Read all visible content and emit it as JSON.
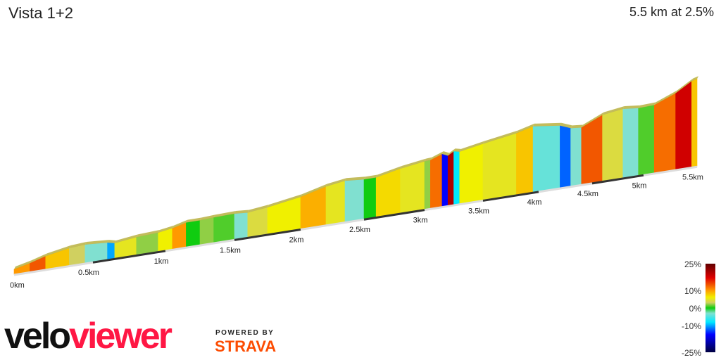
{
  "header": {
    "title": "Vista 1+2",
    "summary": "5.5 km at 2.5%"
  },
  "branding": {
    "velo": "velo",
    "viewer": "viewer",
    "powered_by": "POWERED BY",
    "strava": "STRAVA"
  },
  "chart_data": {
    "type": "area",
    "title": "Vista 1+2",
    "subtitle": "5.5 km at 2.5%",
    "xlabel": "",
    "ylabel": "",
    "x_unit": "km",
    "xlim": [
      0,
      5.5
    ],
    "x_ticks": [
      "0km",
      "0.5km",
      "1km",
      "1.5km",
      "2km",
      "2.5km",
      "3km",
      "3.5km",
      "4km",
      "4.5km",
      "5km",
      "5.5km"
    ],
    "legend": {
      "placement": "bottom-right",
      "labels": [
        "25%",
        "10%",
        "0%",
        "-10%",
        "-25%"
      ],
      "range": [
        -25,
        25
      ]
    },
    "color_stops": [
      {
        "grade": 25,
        "color": "#600000"
      },
      {
        "grade": 17,
        "color": "#e00000"
      },
      {
        "grade": 10,
        "color": "#ff9900"
      },
      {
        "grade": 6,
        "color": "#f0f000"
      },
      {
        "grade": 3,
        "color": "#d0d060"
      },
      {
        "grade": 0,
        "color": "#10cc10"
      },
      {
        "grade": -3,
        "color": "#80e0d0"
      },
      {
        "grade": -8,
        "color": "#00e8ff"
      },
      {
        "grade": -15,
        "color": "#0000ff"
      },
      {
        "grade": -25,
        "color": "#000040"
      }
    ],
    "segments": [
      [
        0,
        0.1,
        10
      ],
      [
        0.1,
        0.2,
        13
      ],
      [
        0.2,
        0.35,
        8
      ],
      [
        0.35,
        0.45,
        3
      ],
      [
        0.45,
        0.6,
        -3
      ],
      [
        0.6,
        0.65,
        -10
      ],
      [
        0.65,
        0.8,
        5
      ],
      [
        0.8,
        0.95,
        2
      ],
      [
        0.95,
        1.05,
        6
      ],
      [
        1.05,
        1.15,
        10
      ],
      [
        1.15,
        1.25,
        0
      ],
      [
        1.25,
        1.35,
        2
      ],
      [
        1.35,
        1.5,
        1
      ],
      [
        1.5,
        1.6,
        -3
      ],
      [
        1.6,
        1.75,
        4
      ],
      [
        1.75,
        2.0,
        6
      ],
      [
        2.0,
        2.2,
        9
      ],
      [
        2.2,
        2.35,
        5
      ],
      [
        2.35,
        2.5,
        -3
      ],
      [
        2.5,
        2.6,
        0
      ],
      [
        2.6,
        2.8,
        7
      ],
      [
        2.8,
        3.0,
        5
      ],
      [
        3.0,
        3.05,
        2
      ],
      [
        3.05,
        3.15,
        12
      ],
      [
        3.15,
        3.2,
        -15
      ],
      [
        3.2,
        3.25,
        20
      ],
      [
        3.25,
        3.3,
        -8
      ],
      [
        3.3,
        3.5,
        6
      ],
      [
        3.5,
        3.8,
        5
      ],
      [
        3.8,
        3.95,
        8
      ],
      [
        3.95,
        4.2,
        -4
      ],
      [
        4.2,
        4.3,
        -12
      ],
      [
        4.3,
        4.4,
        -3
      ],
      [
        4.4,
        4.6,
        13
      ],
      [
        4.6,
        4.8,
        4
      ],
      [
        4.8,
        4.95,
        -3
      ],
      [
        4.95,
        5.1,
        1
      ],
      [
        5.1,
        5.3,
        12
      ],
      [
        5.3,
        5.45,
        18
      ],
      [
        5.45,
        5.5,
        8
      ]
    ]
  }
}
